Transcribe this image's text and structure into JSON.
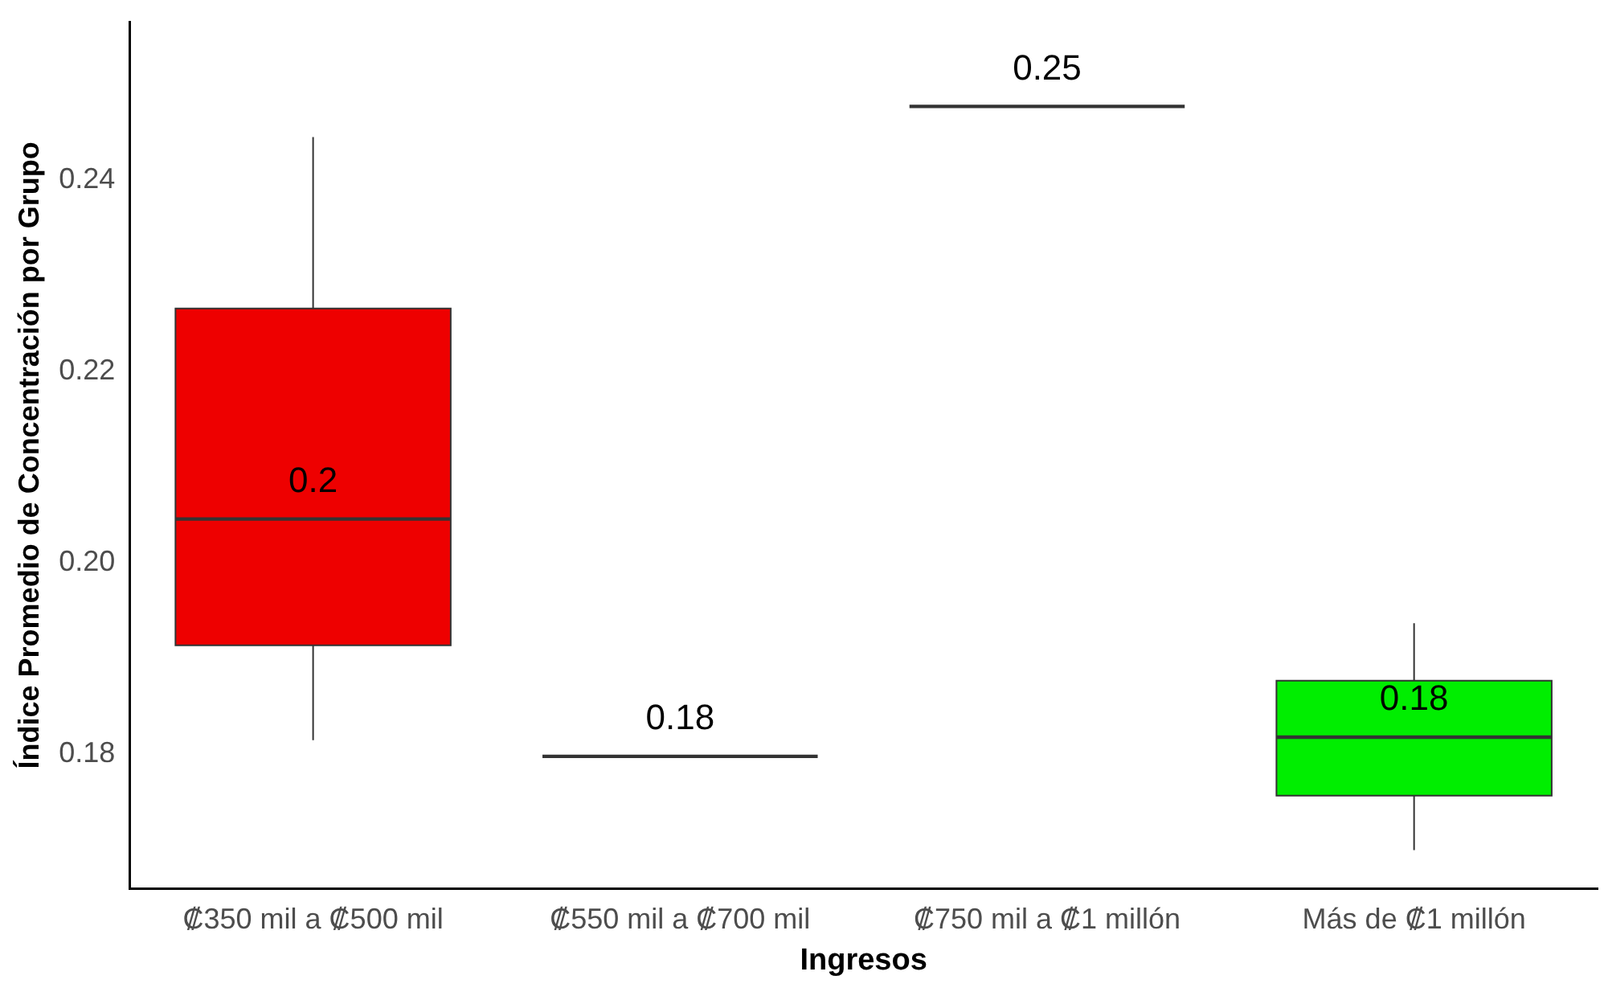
{
  "chart_data": {
    "type": "box",
    "xlabel": "Ingresos",
    "ylabel": "Índice Promedio de Concentración por Grupo",
    "categories": [
      "₡350 mil a ₡500 mil",
      "₡550 mil a ₡700 mil",
      "₡750 mil a ₡1 millón",
      "Más de ₡1 millón"
    ],
    "boxes": [
      {
        "low": 0.1815,
        "q1": 0.1914,
        "median": 0.2046,
        "q3": 0.2266,
        "high": 0.2445
      },
      {
        "low": 0.1798,
        "q1": 0.1798,
        "median": 0.1798,
        "q3": 0.1798,
        "high": 0.1798
      },
      {
        "low": 0.2477,
        "q1": 0.2477,
        "median": 0.2477,
        "q3": 0.2477,
        "high": 0.2477
      },
      {
        "low": 0.17,
        "q1": 0.1757,
        "median": 0.1818,
        "q3": 0.1877,
        "high": 0.1937
      }
    ],
    "colors": [
      "#ee0000",
      "#333333",
      "#333333",
      "#00ee00"
    ],
    "value_labels": [
      "0.2",
      "0.18",
      "0.25",
      "0.18"
    ],
    "ylim": [
      0.166,
      0.2565
    ],
    "yticks": [
      {
        "value": 0.18,
        "label": "0.18"
      },
      {
        "value": 0.2,
        "label": "0.20"
      },
      {
        "value": 0.22,
        "label": "0.22"
      },
      {
        "value": 0.24,
        "label": "0.24"
      }
    ],
    "grid": false,
    "legend": false
  }
}
